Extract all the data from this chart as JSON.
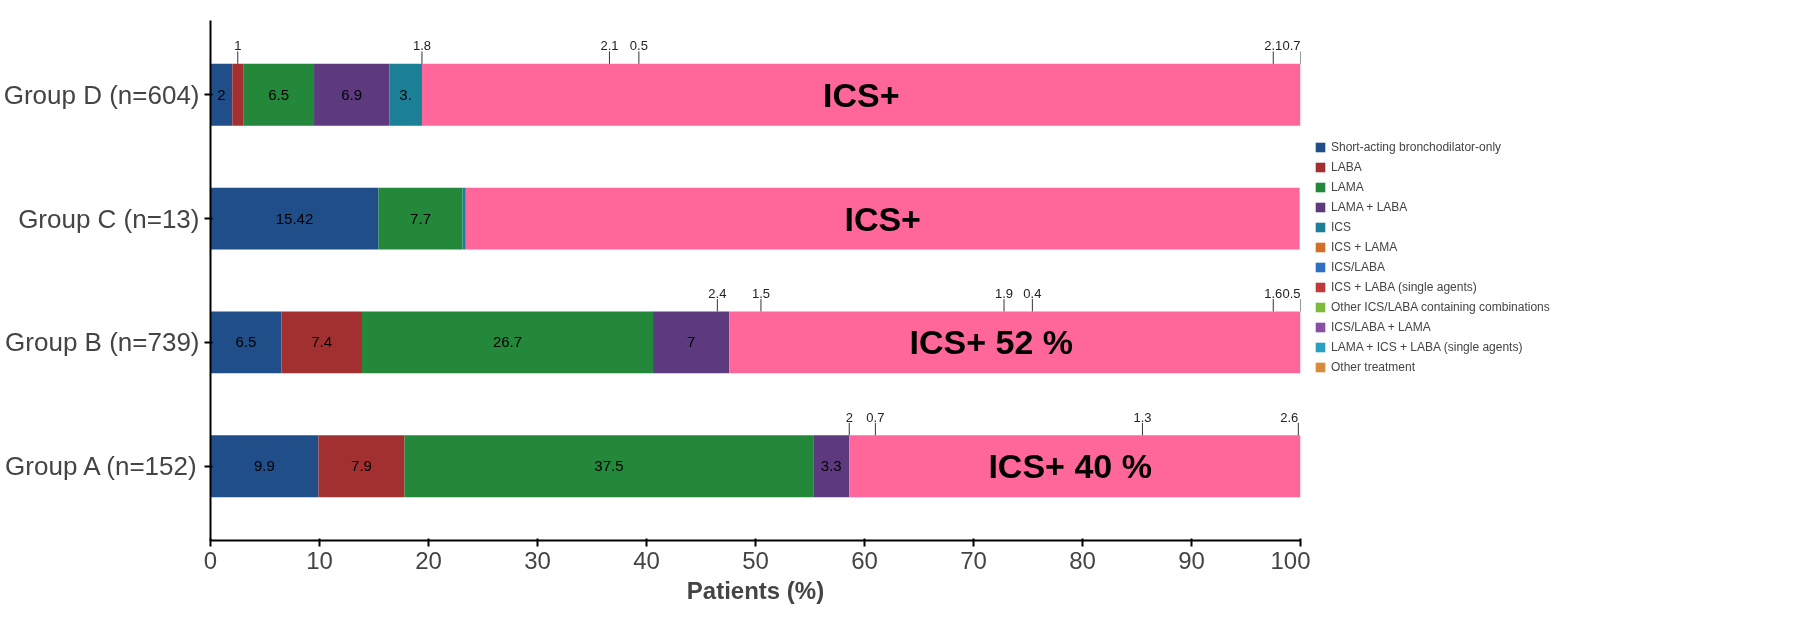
{
  "chart_data": {
    "type": "bar",
    "orientation": "horizontal",
    "stacked": true,
    "xlabel": "Patients (%)",
    "categories": [
      "Group D (n=604)",
      "Group C (n=13)",
      "Group B (n=739)",
      "Group A (n=152)"
    ],
    "xlim": [
      0,
      100
    ],
    "xticks": [
      0,
      10,
      20,
      30,
      40,
      50,
      60,
      70,
      80,
      90,
      100
    ],
    "grid": false,
    "legend": "right",
    "series": [
      {
        "name": "Short-acting bronchodilator-only",
        "color": "#1f4e89",
        "values": [
          2,
          15.42,
          6.5,
          9.9
        ],
        "value_labels": [
          "2",
          "15.42",
          "6.5",
          "9.9"
        ]
      },
      {
        "name": "LABA",
        "color": "#a33030",
        "values": [
          1,
          null,
          7.4,
          7.9
        ],
        "value_labels": [
          null,
          null,
          "7.4",
          "7.9"
        ]
      },
      {
        "name": "LAMA",
        "color": "#23883a",
        "values": [
          6.5,
          7.7,
          26.7,
          37.5
        ],
        "value_labels": [
          "6.5",
          "7.7",
          "26.7",
          "37.5"
        ]
      },
      {
        "name": "LAMA + LABA",
        "color": "#5d3a7e",
        "values": [
          6.9,
          null,
          7,
          3.3
        ],
        "value_labels": [
          "6.9",
          null,
          "7",
          "3.3"
        ]
      },
      {
        "name": "ICS",
        "color": "#1b7f95",
        "values": [
          3,
          0.3,
          null,
          null
        ],
        "value_labels": [
          "3.",
          null,
          null,
          null
        ]
      },
      {
        "name": "ICS + LAMA",
        "color": "#d2702a",
        "values": [
          null,
          null,
          null,
          null
        ]
      },
      {
        "name": "ICS/LABA",
        "color": "#2e6fc0",
        "values": [
          null,
          null,
          null,
          null
        ]
      },
      {
        "name": "ICS + LABA (single agents)",
        "color": "#c03a3a",
        "values": [
          null,
          null,
          null,
          null
        ]
      },
      {
        "name": "Other ICS/LABA containing combinations",
        "color": "#7dbb3e",
        "values": [
          null,
          null,
          null,
          null
        ]
      },
      {
        "name": "ICS/LABA + LAMA",
        "color": "#8a4ea8",
        "values": [
          null,
          null,
          null,
          null
        ]
      },
      {
        "name": "LAMA + ICS + LABA (single agents)",
        "color": "#2aa0c0",
        "values": [
          null,
          null,
          null,
          null
        ]
      },
      {
        "name": "Other treatment",
        "color": "#d98a3a",
        "values": [
          null,
          null,
          null,
          null
        ]
      },
      {
        "color": "#ff6699",
        "values": [
          80.6,
          76.5,
          52.4,
          41.4
        ],
        "value_labels": [
          "ICS+",
          "ICS+",
          "ICS+      52 %",
          "ICS+  40 %"
        ]
      }
    ],
    "annotations": [
      "1",
      "1.8",
      "2.1",
      "0.5",
      "2.1",
      "0.7",
      "2.4",
      "1.5",
      "1.9",
      "0.4",
      "1.6",
      "0.5",
      "2",
      "0.7",
      "1.3",
      "2.6"
    ]
  }
}
